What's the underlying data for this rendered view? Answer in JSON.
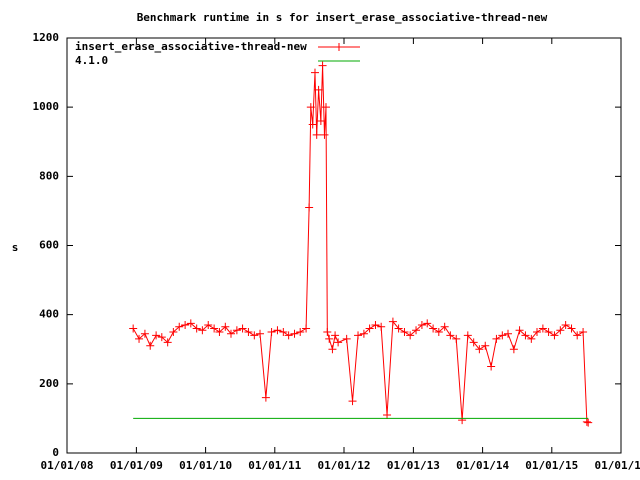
{
  "chart_data": {
    "type": "line",
    "title": "Benchmark runtime in s for insert_erase_associative-thread-new",
    "y_label": "s",
    "ylim": [
      0,
      1200
    ],
    "yticks": [
      0,
      200,
      400,
      600,
      800,
      1000,
      1200
    ],
    "xlim": [
      "2008-01-01",
      "2016-01-01"
    ],
    "xticks": [
      {
        "value": "2008-01-01",
        "label": "01/01/08"
      },
      {
        "value": "2009-01-01",
        "label": "01/01/09"
      },
      {
        "value": "2010-01-01",
        "label": "01/01/10"
      },
      {
        "value": "2011-01-01",
        "label": "01/01/11"
      },
      {
        "value": "2012-01-01",
        "label": "01/01/12"
      },
      {
        "value": "2013-01-01",
        "label": "01/01/13"
      },
      {
        "value": "2014-01-01",
        "label": "01/01/14"
      },
      {
        "value": "2015-01-01",
        "label": "01/01/15"
      },
      {
        "value": "2016-01-01",
        "label": "01/01/16"
      }
    ],
    "legend": "top-left",
    "series": [
      {
        "name": "insert_erase_associative-thread-new",
        "color": "#ff0000",
        "markers": true,
        "x": [
          "2008-12-15",
          "2009-01-15",
          "2009-02-15",
          "2009-03-15",
          "2009-04-15",
          "2009-05-15",
          "2009-06-15",
          "2009-07-15",
          "2009-08-15",
          "2009-09-15",
          "2009-10-15",
          "2009-11-15",
          "2009-12-15",
          "2010-01-15",
          "2010-02-15",
          "2010-03-15",
          "2010-04-15",
          "2010-05-15",
          "2010-06-15",
          "2010-07-15",
          "2010-08-15",
          "2010-09-15",
          "2010-10-15",
          "2010-11-15",
          "2010-12-15",
          "2011-01-15",
          "2011-02-15",
          "2011-03-15",
          "2011-04-15",
          "2011-05-15",
          "2011-06-15",
          "2011-07-01",
          "2011-07-10",
          "2011-07-20",
          "2011-08-01",
          "2011-08-10",
          "2011-08-20",
          "2011-09-01",
          "2011-09-10",
          "2011-09-20",
          "2011-09-28",
          "2011-10-05",
          "2011-10-15",
          "2011-11-01",
          "2011-11-15",
          "2011-12-01",
          "2012-01-15",
          "2012-02-15",
          "2012-03-15",
          "2012-04-15",
          "2012-05-15",
          "2012-06-15",
          "2012-07-15",
          "2012-08-15",
          "2012-09-15",
          "2012-10-15",
          "2012-11-15",
          "2012-12-15",
          "2013-01-15",
          "2013-02-15",
          "2013-03-15",
          "2013-04-15",
          "2013-05-15",
          "2013-06-15",
          "2013-07-15",
          "2013-08-15",
          "2013-09-15",
          "2013-10-15",
          "2013-11-15",
          "2013-12-15",
          "2014-01-15",
          "2014-02-15",
          "2014-03-15",
          "2014-04-15",
          "2014-05-15",
          "2014-06-15",
          "2014-07-15",
          "2014-08-15",
          "2014-09-15",
          "2014-10-15",
          "2014-11-15",
          "2014-12-15",
          "2015-01-15",
          "2015-02-15",
          "2015-03-15",
          "2015-04-15",
          "2015-05-15",
          "2015-06-15",
          "2015-07-05",
          "2015-07-12"
        ],
        "values": [
          360,
          330,
          345,
          310,
          340,
          335,
          320,
          350,
          365,
          370,
          375,
          360,
          355,
          370,
          360,
          350,
          365,
          345,
          355,
          360,
          350,
          340,
          345,
          160,
          350,
          355,
          350,
          340,
          345,
          350,
          360,
          710,
          1000,
          950,
          1100,
          920,
          1050,
          960,
          1120,
          920,
          1000,
          350,
          330,
          300,
          340,
          320,
          330,
          150,
          340,
          345,
          360,
          370,
          365,
          110,
          380,
          360,
          350,
          340,
          355,
          370,
          375,
          360,
          350,
          365,
          340,
          330,
          95,
          340,
          320,
          300,
          310,
          250,
          330,
          340,
          345,
          300,
          355,
          340,
          330,
          350,
          360,
          350,
          340,
          355,
          370,
          360,
          340,
          350,
          90,
          88
        ]
      },
      {
        "name": "4.1.0",
        "color": "#00aa00",
        "markers": false,
        "x": [
          "2008-12-15",
          "2015-07-12"
        ],
        "values": [
          100,
          100
        ]
      }
    ]
  }
}
